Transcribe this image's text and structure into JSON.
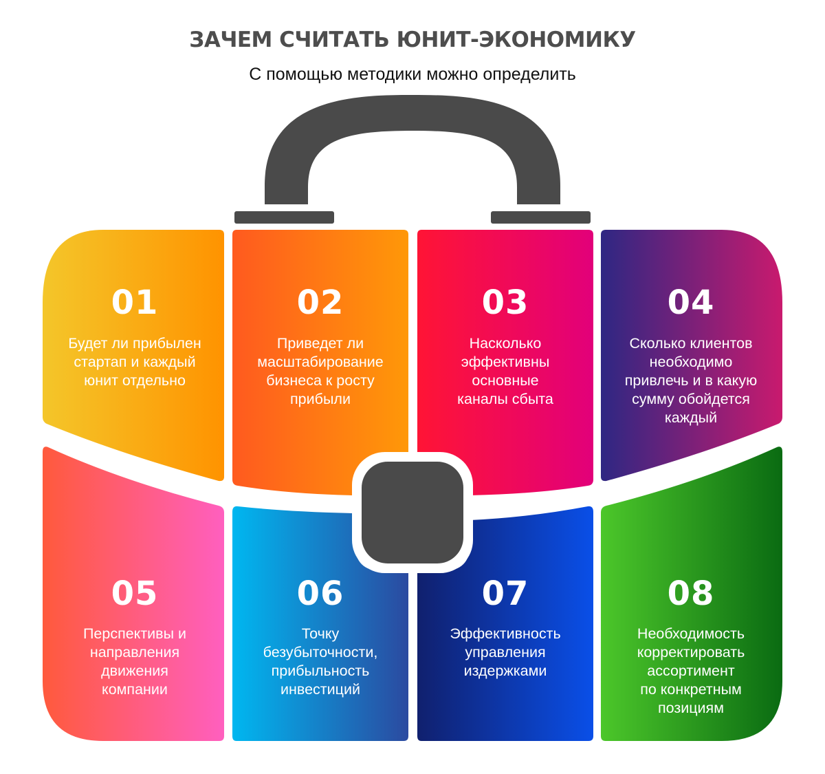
{
  "header": {
    "title": "ЗАЧЕМ СЧИТАТЬ ЮНИТ-ЭКОНОМИКУ",
    "subtitle": "С помощью методики можно определить"
  },
  "items": [
    {
      "number": "01",
      "text": "Будет ли прибылен\nстартап и каждый\nюнит отдельно",
      "colors": [
        "#f4c62a",
        "#ff9300"
      ]
    },
    {
      "number": "02",
      "text": "Приведет ли\nмасштабирование\nбизнеса к росту\nприбыли",
      "colors": [
        "#ff5a1f",
        "#ff9808"
      ]
    },
    {
      "number": "03",
      "text": "Насколько\nэффективны\nосновные\nканалы сбыта",
      "colors": [
        "#ff1435",
        "#e2007a"
      ]
    },
    {
      "number": "04",
      "text": "Сколько клиентов\nнеобходимо\nпривлечь и в какую\nсумму обойдется\nкаждый",
      "colors": [
        "#2e2783",
        "#c91a6e"
      ]
    },
    {
      "number": "05",
      "text": "Перспективы и\nнаправления\nдвижения\nкомпании",
      "colors": [
        "#ff5a3c",
        "#ff5fbf"
      ]
    },
    {
      "number": "06",
      "text": "Точку\nбезубыточности,\nприбыльность\nинвестиций",
      "colors": [
        "#00b7f0",
        "#2b4aa0"
      ]
    },
    {
      "number": "07",
      "text": "Эффективность\nуправления\nиздержками",
      "colors": [
        "#10206e",
        "#0a4fe8"
      ]
    },
    {
      "number": "08",
      "text": "Необходимость\nкорректировать\nассортимент\nпо конкретным\nпозициям",
      "colors": [
        "#4cc72a",
        "#0a6b12"
      ]
    }
  ],
  "palette": {
    "handle": "#4a4a4a",
    "lock": "#4a4a4a",
    "title": "#4d4d4d"
  }
}
